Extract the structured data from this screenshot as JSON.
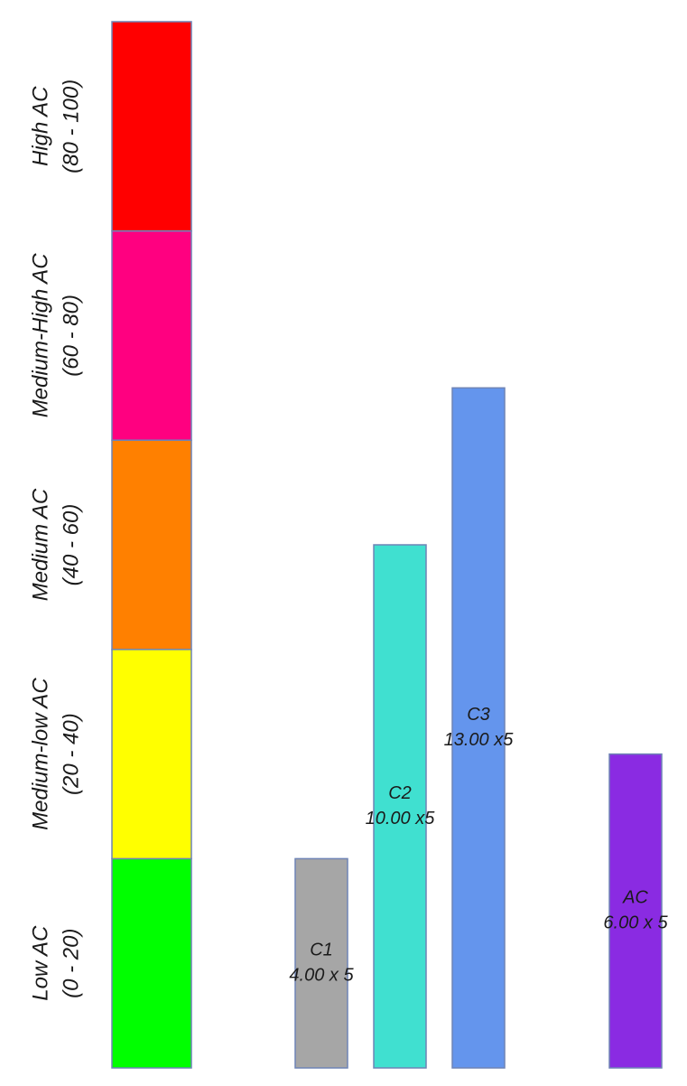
{
  "chart_data": {
    "type": "bar",
    "ylim": [
      0,
      100
    ],
    "bands": [
      {
        "name": "Low AC",
        "range": "(0 - 20)",
        "from": 0,
        "to": 20,
        "color": "#00ff00"
      },
      {
        "name": "Medium-low AC",
        "range": "(20 - 40)",
        "from": 20,
        "to": 40,
        "color": "#ffff00"
      },
      {
        "name": "Medium AC",
        "range": "(40 - 60)",
        "from": 40,
        "to": 60,
        "color": "#ff8000"
      },
      {
        "name": "Medium-High AC",
        "range": "(60 - 80)",
        "from": 60,
        "to": 80,
        "color": "#ff0080"
      },
      {
        "name": "High AC",
        "range": "(80 - 100)",
        "from": 80,
        "to": 100,
        "color": "#ff0000"
      }
    ],
    "categories": [
      "C1",
      "C2",
      "C3",
      null,
      "AC"
    ],
    "values": [
      20,
      50,
      65,
      null,
      30
    ],
    "value_labels": [
      "4.00 x 5",
      "10.00 x5",
      "13.00 x5",
      null,
      "6.00 x 5"
    ],
    "colors": [
      "#a6a6a6",
      "#40e0d0",
      "#6495ed",
      null,
      "#8a2be2"
    ]
  }
}
